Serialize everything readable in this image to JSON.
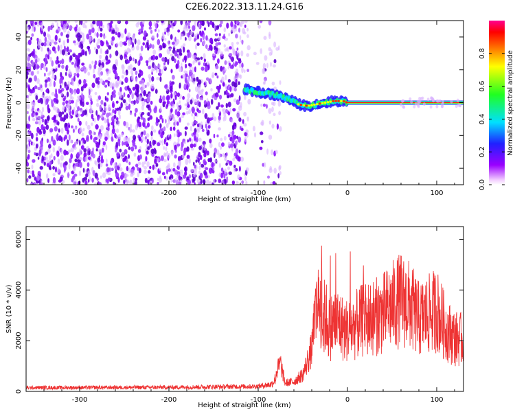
{
  "figure": {
    "title": "C2E6.2022.313.11.24.G16"
  },
  "colorbar": {
    "label": "Normalized spectral amplitude",
    "ticks": [
      "0.0",
      "0.2",
      "0.4",
      "0.6",
      "0.8"
    ],
    "tick_values": [
      0.0,
      0.2,
      0.4,
      0.6,
      0.8
    ],
    "range": [
      0,
      1
    ],
    "colormap": "hsv-rainbow (violet to red)"
  },
  "chart_data": [
    {
      "type": "heatmap",
      "title": "",
      "xlabel": "Height of straight line (km)",
      "ylabel": "Frequency (Hz)",
      "xlim": [
        -360,
        130
      ],
      "ylim": [
        -50,
        50
      ],
      "xticks": [
        -300,
        -200,
        -100,
        0,
        100
      ],
      "xtick_labels": [
        "-300",
        "-200",
        "-100",
        "0",
        "100"
      ],
      "yticks": [
        -40,
        -20,
        0,
        20,
        40
      ],
      "ytick_labels": [
        "-40",
        "-20",
        "0",
        "20",
        "40"
      ],
      "noise_region_x": [
        -360,
        -75
      ],
      "clear_gap_x": [
        -110,
        -97
      ],
      "signal_trace": {
        "x": [
          -115,
          -105,
          -95,
          -85,
          -75,
          -65,
          -55,
          -45,
          -35,
          -25,
          -15,
          -5,
          0,
          130
        ],
        "y": [
          8,
          7,
          6,
          5,
          4,
          2,
          -1,
          -2,
          -1,
          0,
          1,
          1,
          0,
          0
        ]
      },
      "grid": false
    },
    {
      "type": "line",
      "title": "",
      "xlabel": "Height of straight line (km)",
      "ylabel": "SNR (10 * v/v)",
      "xlim": [
        -360,
        130
      ],
      "ylim": [
        0,
        6500
      ],
      "xticks": [
        -300,
        -200,
        -100,
        0,
        100
      ],
      "xtick_labels": [
        "-300",
        "-200",
        "-100",
        "0",
        "100"
      ],
      "yticks": [
        0,
        2000,
        4000,
        6000
      ],
      "ytick_labels": [
        "0",
        "2000",
        "4000",
        "6000"
      ],
      "color": "#ee3333",
      "envelope": {
        "x": [
          -360,
          -200,
          -100,
          -85,
          -75,
          -70,
          -60,
          -50,
          -40,
          -35,
          -30,
          -25,
          -20,
          -15,
          -10,
          -5,
          0,
          10,
          20,
          30,
          40,
          50,
          60,
          70,
          80,
          90,
          100,
          110,
          120,
          130
        ],
        "y": [
          180,
          200,
          250,
          350,
          1000,
          300,
          350,
          600,
          1500,
          3000,
          3200,
          4000,
          3300,
          3600,
          3600,
          3300,
          3200,
          3500,
          3800,
          3900,
          4100,
          4500,
          4800,
          4500,
          3800,
          4000,
          4300,
          3300,
          2800,
          2700
        ]
      },
      "grid": false
    }
  ]
}
